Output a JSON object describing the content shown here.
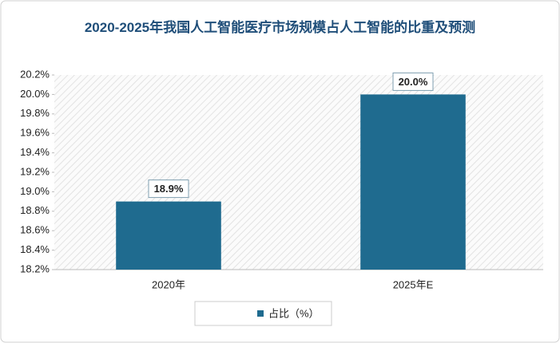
{
  "chart_data": {
    "type": "bar",
    "title": "2020-2025年我国人工智能医疗市场规模占人工智能的比重及预测",
    "categories": [
      "2020年",
      "2025年E"
    ],
    "series": [
      {
        "name": "占比（%）",
        "color": "#1f6b8f",
        "values": [
          18.9,
          20.0
        ],
        "value_labels": [
          "18.9%",
          "20.0%"
        ]
      }
    ],
    "ylim": [
      18.2,
      20.2
    ],
    "yticks": [
      {
        "value": 18.2,
        "label": "18.2%"
      },
      {
        "value": 18.4,
        "label": "18.4%"
      },
      {
        "value": 18.6,
        "label": "18.6%"
      },
      {
        "value": 18.8,
        "label": "18.8%"
      },
      {
        "value": 19.0,
        "label": "19.0%"
      },
      {
        "value": 19.2,
        "label": "19.2%"
      },
      {
        "value": 19.4,
        "label": "19.4%"
      },
      {
        "value": 19.6,
        "label": "19.6%"
      },
      {
        "value": 19.8,
        "label": "19.8%"
      },
      {
        "value": 20.0,
        "label": "20.0%"
      },
      {
        "value": 20.2,
        "label": "20.2%"
      }
    ],
    "legend": "bottom"
  }
}
